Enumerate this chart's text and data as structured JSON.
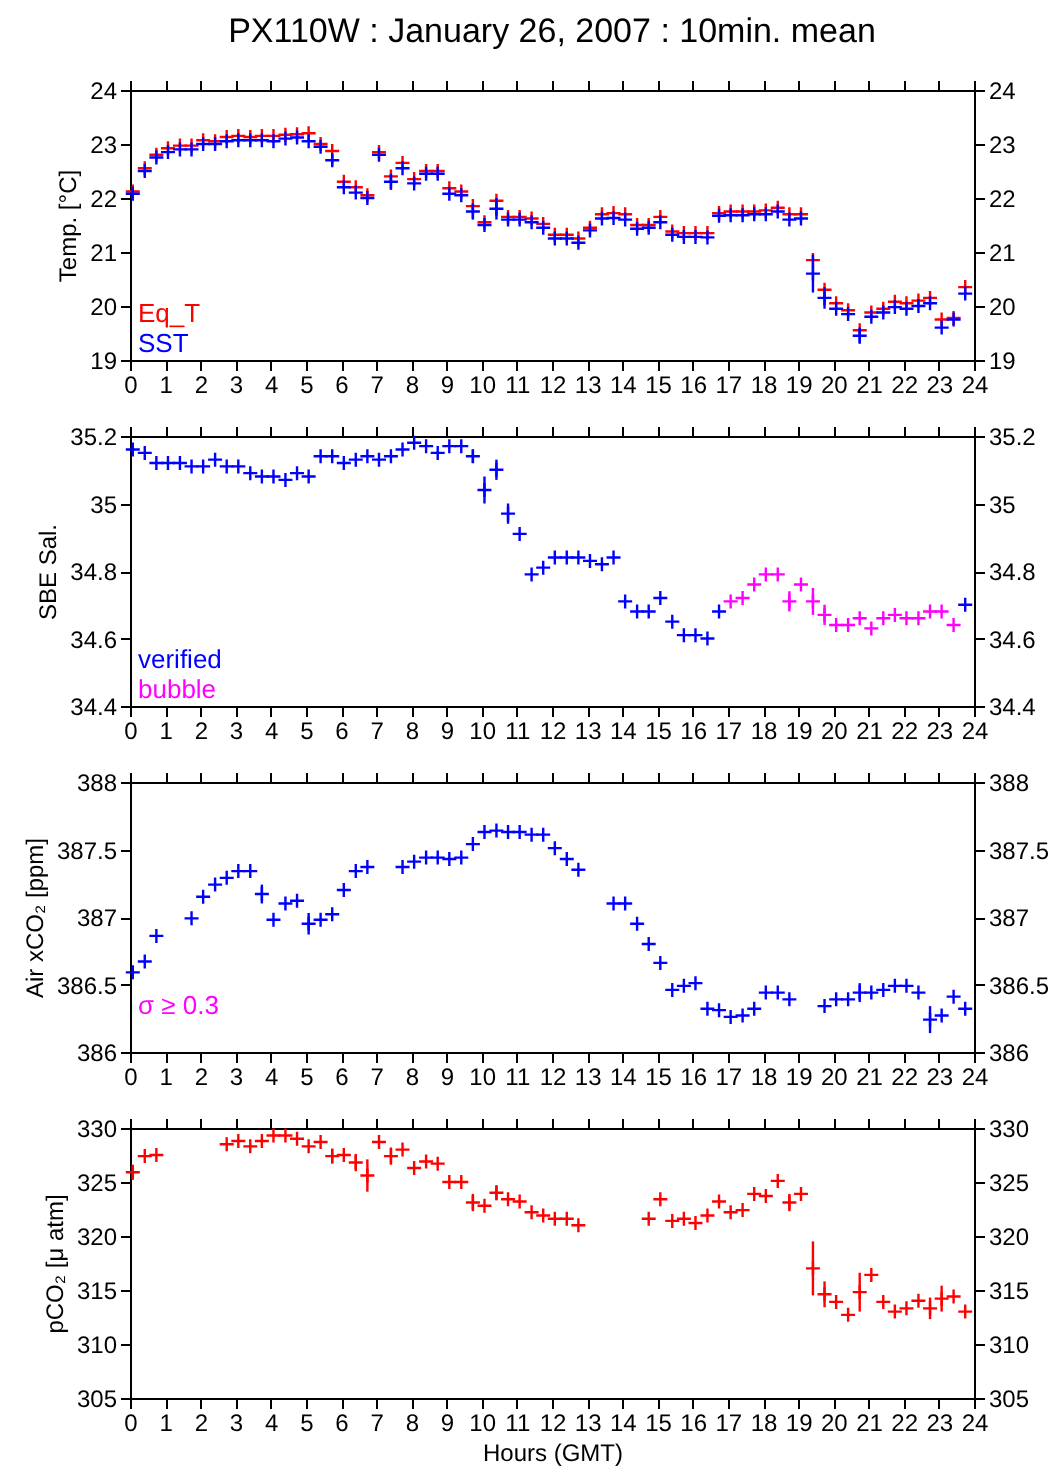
{
  "chart_data": [
    {
      "type": "scatter",
      "title": "PX110W : January 26, 2007 : 10min. mean",
      "ylabel": "Temp. [°C]",
      "x": [
        0.08,
        0.42,
        0.75,
        1.08,
        1.42,
        1.75,
        2.08,
        2.42,
        2.75,
        3.08,
        3.42,
        3.75,
        4.08,
        4.42,
        4.75,
        5.08,
        5.42,
        5.75,
        6.08,
        6.42,
        6.75,
        7.08,
        7.42,
        7.75,
        8.08,
        8.42,
        8.75,
        9.08,
        9.42,
        9.75,
        10.08,
        10.42,
        10.75,
        11.08,
        11.42,
        11.75,
        12.08,
        12.42,
        12.75,
        13.08,
        13.42,
        13.75,
        14.08,
        14.42,
        14.75,
        15.08,
        15.42,
        15.75,
        16.08,
        16.42,
        16.75,
        17.08,
        17.42,
        17.75,
        18.08,
        18.42,
        18.75,
        19.08,
        19.42,
        19.75,
        20.08,
        20.42,
        20.75,
        21.08,
        21.42,
        21.75,
        22.08,
        22.42,
        22.75,
        23.08,
        23.42,
        23.75
      ],
      "series": [
        {
          "name": "Eq_T",
          "color": "#ff0000",
          "values": [
            22.12,
            22.55,
            22.8,
            22.92,
            22.97,
            22.97,
            23.07,
            23.05,
            23.13,
            23.15,
            23.13,
            23.15,
            23.15,
            23.17,
            23.18,
            23.2,
            23.0,
            22.87,
            22.3,
            22.2,
            22.05,
            22.85,
            22.4,
            22.65,
            22.35,
            22.5,
            22.5,
            22.18,
            22.12,
            21.85,
            21.55,
            21.95,
            21.65,
            21.65,
            21.62,
            21.52,
            21.32,
            21.32,
            21.25,
            21.45,
            21.7,
            21.72,
            21.7,
            21.5,
            21.5,
            21.65,
            21.38,
            21.35,
            21.35,
            21.35,
            21.72,
            21.75,
            21.75,
            21.75,
            21.77,
            21.82,
            21.7,
            21.7,
            20.85,
            20.3,
            20.05,
            19.92,
            19.55,
            19.88,
            19.95,
            20.08,
            20.05,
            20.1,
            20.15,
            19.75,
            19.78,
            20.35
          ]
        },
        {
          "name": "SST",
          "color": "#0000ff",
          "values": [
            22.08,
            22.5,
            22.75,
            22.85,
            22.9,
            22.9,
            23.0,
            23.0,
            23.05,
            23.07,
            23.07,
            23.07,
            23.05,
            23.1,
            23.12,
            23.05,
            22.95,
            22.7,
            22.2,
            22.1,
            22.0,
            22.8,
            22.3,
            22.55,
            22.27,
            22.45,
            22.45,
            22.08,
            22.05,
            21.75,
            21.5,
            21.8,
            21.6,
            21.6,
            21.55,
            21.45,
            21.25,
            21.25,
            21.17,
            21.4,
            21.62,
            21.63,
            21.6,
            21.43,
            21.45,
            21.55,
            21.32,
            21.28,
            21.28,
            21.27,
            21.67,
            21.68,
            21.68,
            21.7,
            21.7,
            21.75,
            21.6,
            21.62,
            20.6,
            20.15,
            19.95,
            19.85,
            19.45,
            19.8,
            19.88,
            19.98,
            19.95,
            20.0,
            20.05,
            19.6,
            19.75,
            20.23
          ],
          "errors": [
            null,
            null,
            null,
            null,
            null,
            null,
            null,
            null,
            null,
            null,
            null,
            null,
            null,
            null,
            null,
            null,
            null,
            0.1,
            null,
            null,
            null,
            null,
            0.15,
            null,
            null,
            null,
            null,
            null,
            null,
            0.15,
            null,
            0.2,
            null,
            null,
            null,
            null,
            null,
            null,
            null,
            null,
            null,
            null,
            null,
            null,
            null,
            null,
            null,
            null,
            null,
            null,
            null,
            null,
            null,
            null,
            null,
            null,
            null,
            null,
            0.35,
            0.2,
            null,
            null,
            0.15,
            null,
            null,
            null,
            null,
            null,
            null,
            null,
            null,
            null
          ]
        }
      ],
      "xlim": [
        0,
        24
      ],
      "xticks": [
        0,
        1,
        2,
        3,
        4,
        5,
        6,
        7,
        8,
        9,
        10,
        11,
        12,
        13,
        14,
        15,
        16,
        17,
        18,
        19,
        20,
        21,
        22,
        23,
        24
      ],
      "ylim": [
        19,
        24
      ],
      "yticks": [
        19,
        20,
        21,
        22,
        23,
        24
      ],
      "y2lim": [
        19,
        24
      ],
      "y2ticks": [
        19,
        20,
        21,
        22,
        23,
        24
      ],
      "marker": "cross",
      "legend": "bottom left"
    },
    {
      "type": "scatter",
      "ylabel": "SBE Sal.",
      "x": [
        0.08,
        0.42,
        0.75,
        1.08,
        1.42,
        1.75,
        2.08,
        2.42,
        2.75,
        3.08,
        3.42,
        3.75,
        4.08,
        4.42,
        4.75,
        5.08,
        5.42,
        5.75,
        6.08,
        6.42,
        6.75,
        7.08,
        7.42,
        7.75,
        8.08,
        8.42,
        8.75,
        9.08,
        9.42,
        9.75,
        10.08,
        10.42,
        10.75,
        11.08,
        11.42,
        11.75,
        12.08,
        12.42,
        12.75,
        13.08,
        13.42,
        13.75,
        14.08,
        14.42,
        14.75,
        15.08,
        15.42,
        15.75,
        16.08,
        16.42,
        16.75,
        17.08,
        17.42,
        17.75,
        18.08,
        18.42,
        18.75,
        19.08,
        19.42,
        19.75,
        20.08,
        20.42,
        20.75,
        21.08,
        21.42,
        21.75,
        22.08,
        22.42,
        22.75,
        23.08,
        23.42,
        23.75
      ],
      "series": [
        {
          "name": "verified",
          "color": "#0000ff",
          "values": [
            35.16,
            35.15,
            35.12,
            35.12,
            35.12,
            35.11,
            35.11,
            35.13,
            35.11,
            35.11,
            35.09,
            35.08,
            35.08,
            35.07,
            35.09,
            35.08,
            35.14,
            35.14,
            35.12,
            35.13,
            35.14,
            35.13,
            35.14,
            35.16,
            35.18,
            35.17,
            35.15,
            35.17,
            35.17,
            35.14,
            35.04,
            35.1,
            34.97,
            34.91,
            34.79,
            34.81,
            34.84,
            34.84,
            34.84,
            34.83,
            34.82,
            34.84,
            34.71,
            34.68,
            34.68,
            34.72,
            34.65,
            34.61,
            34.61,
            34.6,
            34.68,
            null,
            null,
            null,
            null,
            null,
            null,
            null,
            null,
            null,
            null,
            null,
            null,
            null,
            null,
            null,
            null,
            null,
            null,
            null,
            null,
            34.7
          ],
          "errors": [
            null,
            null,
            null,
            null,
            null,
            null,
            null,
            null,
            null,
            null,
            null,
            null,
            null,
            null,
            null,
            null,
            null,
            null,
            null,
            null,
            null,
            null,
            null,
            null,
            null,
            null,
            null,
            null,
            null,
            0.02,
            0.04,
            0.03,
            0.03,
            null,
            null,
            null,
            null,
            null,
            null,
            null,
            null,
            null,
            null,
            null,
            null,
            null,
            null,
            null,
            null,
            null,
            null,
            null,
            null,
            null,
            null,
            null,
            null,
            null,
            null,
            null,
            null,
            null,
            null,
            null,
            null,
            null,
            null,
            null,
            null,
            null,
            null,
            null
          ]
        },
        {
          "name": "bubble",
          "color": "#ff00ff",
          "values": [
            null,
            null,
            null,
            null,
            null,
            null,
            null,
            null,
            null,
            null,
            null,
            null,
            null,
            null,
            null,
            null,
            null,
            null,
            null,
            null,
            null,
            null,
            null,
            null,
            null,
            null,
            null,
            null,
            null,
            null,
            null,
            null,
            null,
            null,
            null,
            null,
            null,
            null,
            null,
            null,
            null,
            null,
            null,
            null,
            null,
            null,
            null,
            null,
            null,
            null,
            null,
            34.71,
            34.72,
            34.76,
            34.79,
            34.79,
            34.71,
            34.76,
            34.71,
            34.67,
            34.64,
            34.64,
            34.66,
            34.63,
            34.66,
            34.67,
            34.66,
            34.66,
            34.68,
            34.68,
            34.64,
            null
          ],
          "errors": [
            null,
            null,
            null,
            null,
            null,
            null,
            null,
            null,
            null,
            null,
            null,
            null,
            null,
            null,
            null,
            null,
            null,
            null,
            null,
            null,
            null,
            null,
            null,
            null,
            null,
            null,
            null,
            null,
            null,
            null,
            null,
            null,
            null,
            null,
            null,
            null,
            null,
            null,
            null,
            null,
            null,
            null,
            null,
            null,
            null,
            null,
            null,
            null,
            null,
            null,
            null,
            null,
            null,
            null,
            null,
            null,
            0.03,
            null,
            0.04,
            0.03,
            null,
            null,
            null,
            null,
            null,
            null,
            null,
            null,
            null,
            null,
            null,
            null
          ]
        }
      ],
      "xlim": [
        0,
        24
      ],
      "xticks": [
        0,
        1,
        2,
        3,
        4,
        5,
        6,
        7,
        8,
        9,
        10,
        11,
        12,
        13,
        14,
        15,
        16,
        17,
        18,
        19,
        20,
        21,
        22,
        23,
        24
      ],
      "ylim": [
        34.4,
        35.2
      ],
      "yticks": [
        34.4,
        34.6,
        34.8,
        35,
        35.2
      ],
      "y2lim": [
        34.4,
        35.2
      ],
      "y2ticks": [
        34.4,
        34.6,
        34.8,
        35,
        35.2
      ],
      "marker": "cross",
      "legend": "bottom left"
    },
    {
      "type": "scatter",
      "ylabel": "Air xCO₂ [ppm]",
      "annotations": [
        "σ ≥ 0.3"
      ],
      "x": [
        0.08,
        0.42,
        0.75,
        1.75,
        2.08,
        2.42,
        2.75,
        3.08,
        3.42,
        3.75,
        4.08,
        4.42,
        4.75,
        5.08,
        5.42,
        5.75,
        6.08,
        6.42,
        6.75,
        7.75,
        8.08,
        8.42,
        8.75,
        9.08,
        9.42,
        9.75,
        10.08,
        10.42,
        10.75,
        11.08,
        11.42,
        11.75,
        12.08,
        12.42,
        12.75,
        13.75,
        14.08,
        14.42,
        14.75,
        15.08,
        15.42,
        15.75,
        16.08,
        16.42,
        16.75,
        17.08,
        17.42,
        17.75,
        18.08,
        18.42,
        18.75,
        19.75,
        20.08,
        20.42,
        20.75,
        21.08,
        21.42,
        21.75,
        22.08,
        22.42,
        22.75,
        23.08,
        23.42,
        23.75
      ],
      "series": [
        {
          "color": "#0000ff",
          "values": [
            386.59,
            386.67,
            386.86,
            386.99,
            387.15,
            387.24,
            387.29,
            387.34,
            387.34,
            387.17,
            386.98,
            387.1,
            387.12,
            386.95,
            386.98,
            387.02,
            387.2,
            387.34,
            387.37,
            387.37,
            387.41,
            387.44,
            387.44,
            387.43,
            387.44,
            387.54,
            387.63,
            387.64,
            387.63,
            387.63,
            387.61,
            387.61,
            387.51,
            387.43,
            387.35,
            387.1,
            387.1,
            386.95,
            386.8,
            386.66,
            386.46,
            386.49,
            386.51,
            386.32,
            386.31,
            386.26,
            386.27,
            386.32,
            386.44,
            386.44,
            386.39,
            386.34,
            386.39,
            386.39,
            386.44,
            386.44,
            386.46,
            386.49,
            386.49,
            386.44,
            386.24,
            386.27,
            386.41,
            386.32
          ],
          "errors": [
            null,
            null,
            null,
            null,
            null,
            null,
            null,
            null,
            null,
            0.07,
            null,
            null,
            null,
            0.08,
            null,
            null,
            null,
            null,
            null,
            null,
            null,
            null,
            null,
            null,
            null,
            null,
            null,
            null,
            null,
            null,
            null,
            null,
            null,
            null,
            null,
            null,
            null,
            null,
            null,
            null,
            null,
            null,
            null,
            null,
            null,
            null,
            null,
            null,
            null,
            null,
            null,
            null,
            null,
            null,
            0.07,
            null,
            null,
            null,
            null,
            null,
            0.1,
            null,
            null,
            null
          ]
        }
      ],
      "xlim": [
        0,
        24
      ],
      "xticks": [
        0,
        1,
        2,
        3,
        4,
        5,
        6,
        7,
        8,
        9,
        10,
        11,
        12,
        13,
        14,
        15,
        16,
        17,
        18,
        19,
        20,
        21,
        22,
        23,
        24
      ],
      "ylim": [
        386,
        388
      ],
      "yticks": [
        386,
        386.5,
        387,
        387.5,
        388
      ],
      "y2lim": [
        386,
        388
      ],
      "y2ticks": [
        386,
        386.5,
        387,
        387.5,
        388
      ],
      "marker": "cross"
    },
    {
      "type": "scatter",
      "ylabel": "pCO₂ [μ atm]",
      "xlabel": "Hours (GMT)",
      "x": [
        0.08,
        0.42,
        0.75,
        2.75,
        3.08,
        3.42,
        3.75,
        4.08,
        4.42,
        4.75,
        5.08,
        5.42,
        5.75,
        6.08,
        6.42,
        6.75,
        7.08,
        7.42,
        7.75,
        8.08,
        8.42,
        8.75,
        9.08,
        9.42,
        9.75,
        10.08,
        10.42,
        10.75,
        11.08,
        11.42,
        11.75,
        12.08,
        12.42,
        12.75,
        14.75,
        15.08,
        15.42,
        15.75,
        16.08,
        16.42,
        16.75,
        17.08,
        17.42,
        17.75,
        18.08,
        18.42,
        18.75,
        19.08,
        19.42,
        19.75,
        20.08,
        20.42,
        20.75,
        21.08,
        21.42,
        21.75,
        22.08,
        22.42,
        22.75,
        23.08,
        23.42,
        23.75
      ],
      "series": [
        {
          "color": "#ff0000",
          "values": [
            325.9,
            327.4,
            327.5,
            328.5,
            328.8,
            328.3,
            328.8,
            329.3,
            329.3,
            329.0,
            328.3,
            328.7,
            327.4,
            327.5,
            326.8,
            325.6,
            328.7,
            327.4,
            328.0,
            326.3,
            326.9,
            326.7,
            325.0,
            325.0,
            323.1,
            322.8,
            324.0,
            323.4,
            323.2,
            322.2,
            321.9,
            321.6,
            321.6,
            321.0,
            321.6,
            323.4,
            321.4,
            321.6,
            321.2,
            321.9,
            323.2,
            322.2,
            322.4,
            323.9,
            323.7,
            325.1,
            323.1,
            323.9,
            317.0,
            314.6,
            313.9,
            312.7,
            314.8,
            316.4,
            313.9,
            313.0,
            313.3,
            314.0,
            313.3,
            314.2,
            314.4,
            313.0
          ],
          "errors": [
            0.7,
            null,
            null,
            null,
            null,
            null,
            null,
            null,
            null,
            null,
            null,
            null,
            0.7,
            null,
            0.8,
            1.5,
            null,
            0.8,
            null,
            null,
            null,
            null,
            null,
            null,
            0.8,
            null,
            0.7,
            null,
            null,
            null,
            null,
            null,
            null,
            null,
            null,
            null,
            null,
            null,
            null,
            null,
            null,
            null,
            null,
            null,
            null,
            null,
            0.8,
            null,
            2.5,
            1.2,
            null,
            null,
            1.8,
            null,
            null,
            null,
            null,
            null,
            1.0,
            1.2,
            null,
            null
          ]
        }
      ],
      "xlim": [
        0,
        24
      ],
      "xticks": [
        0,
        1,
        2,
        3,
        4,
        5,
        6,
        7,
        8,
        9,
        10,
        11,
        12,
        13,
        14,
        15,
        16,
        17,
        18,
        19,
        20,
        21,
        22,
        23,
        24
      ],
      "ylim": [
        305,
        330
      ],
      "yticks": [
        305,
        310,
        315,
        320,
        325,
        330
      ],
      "y2lim": [
        305,
        330
      ],
      "y2ticks": [
        305,
        310,
        315,
        320,
        325,
        330
      ],
      "marker": "cross"
    }
  ]
}
